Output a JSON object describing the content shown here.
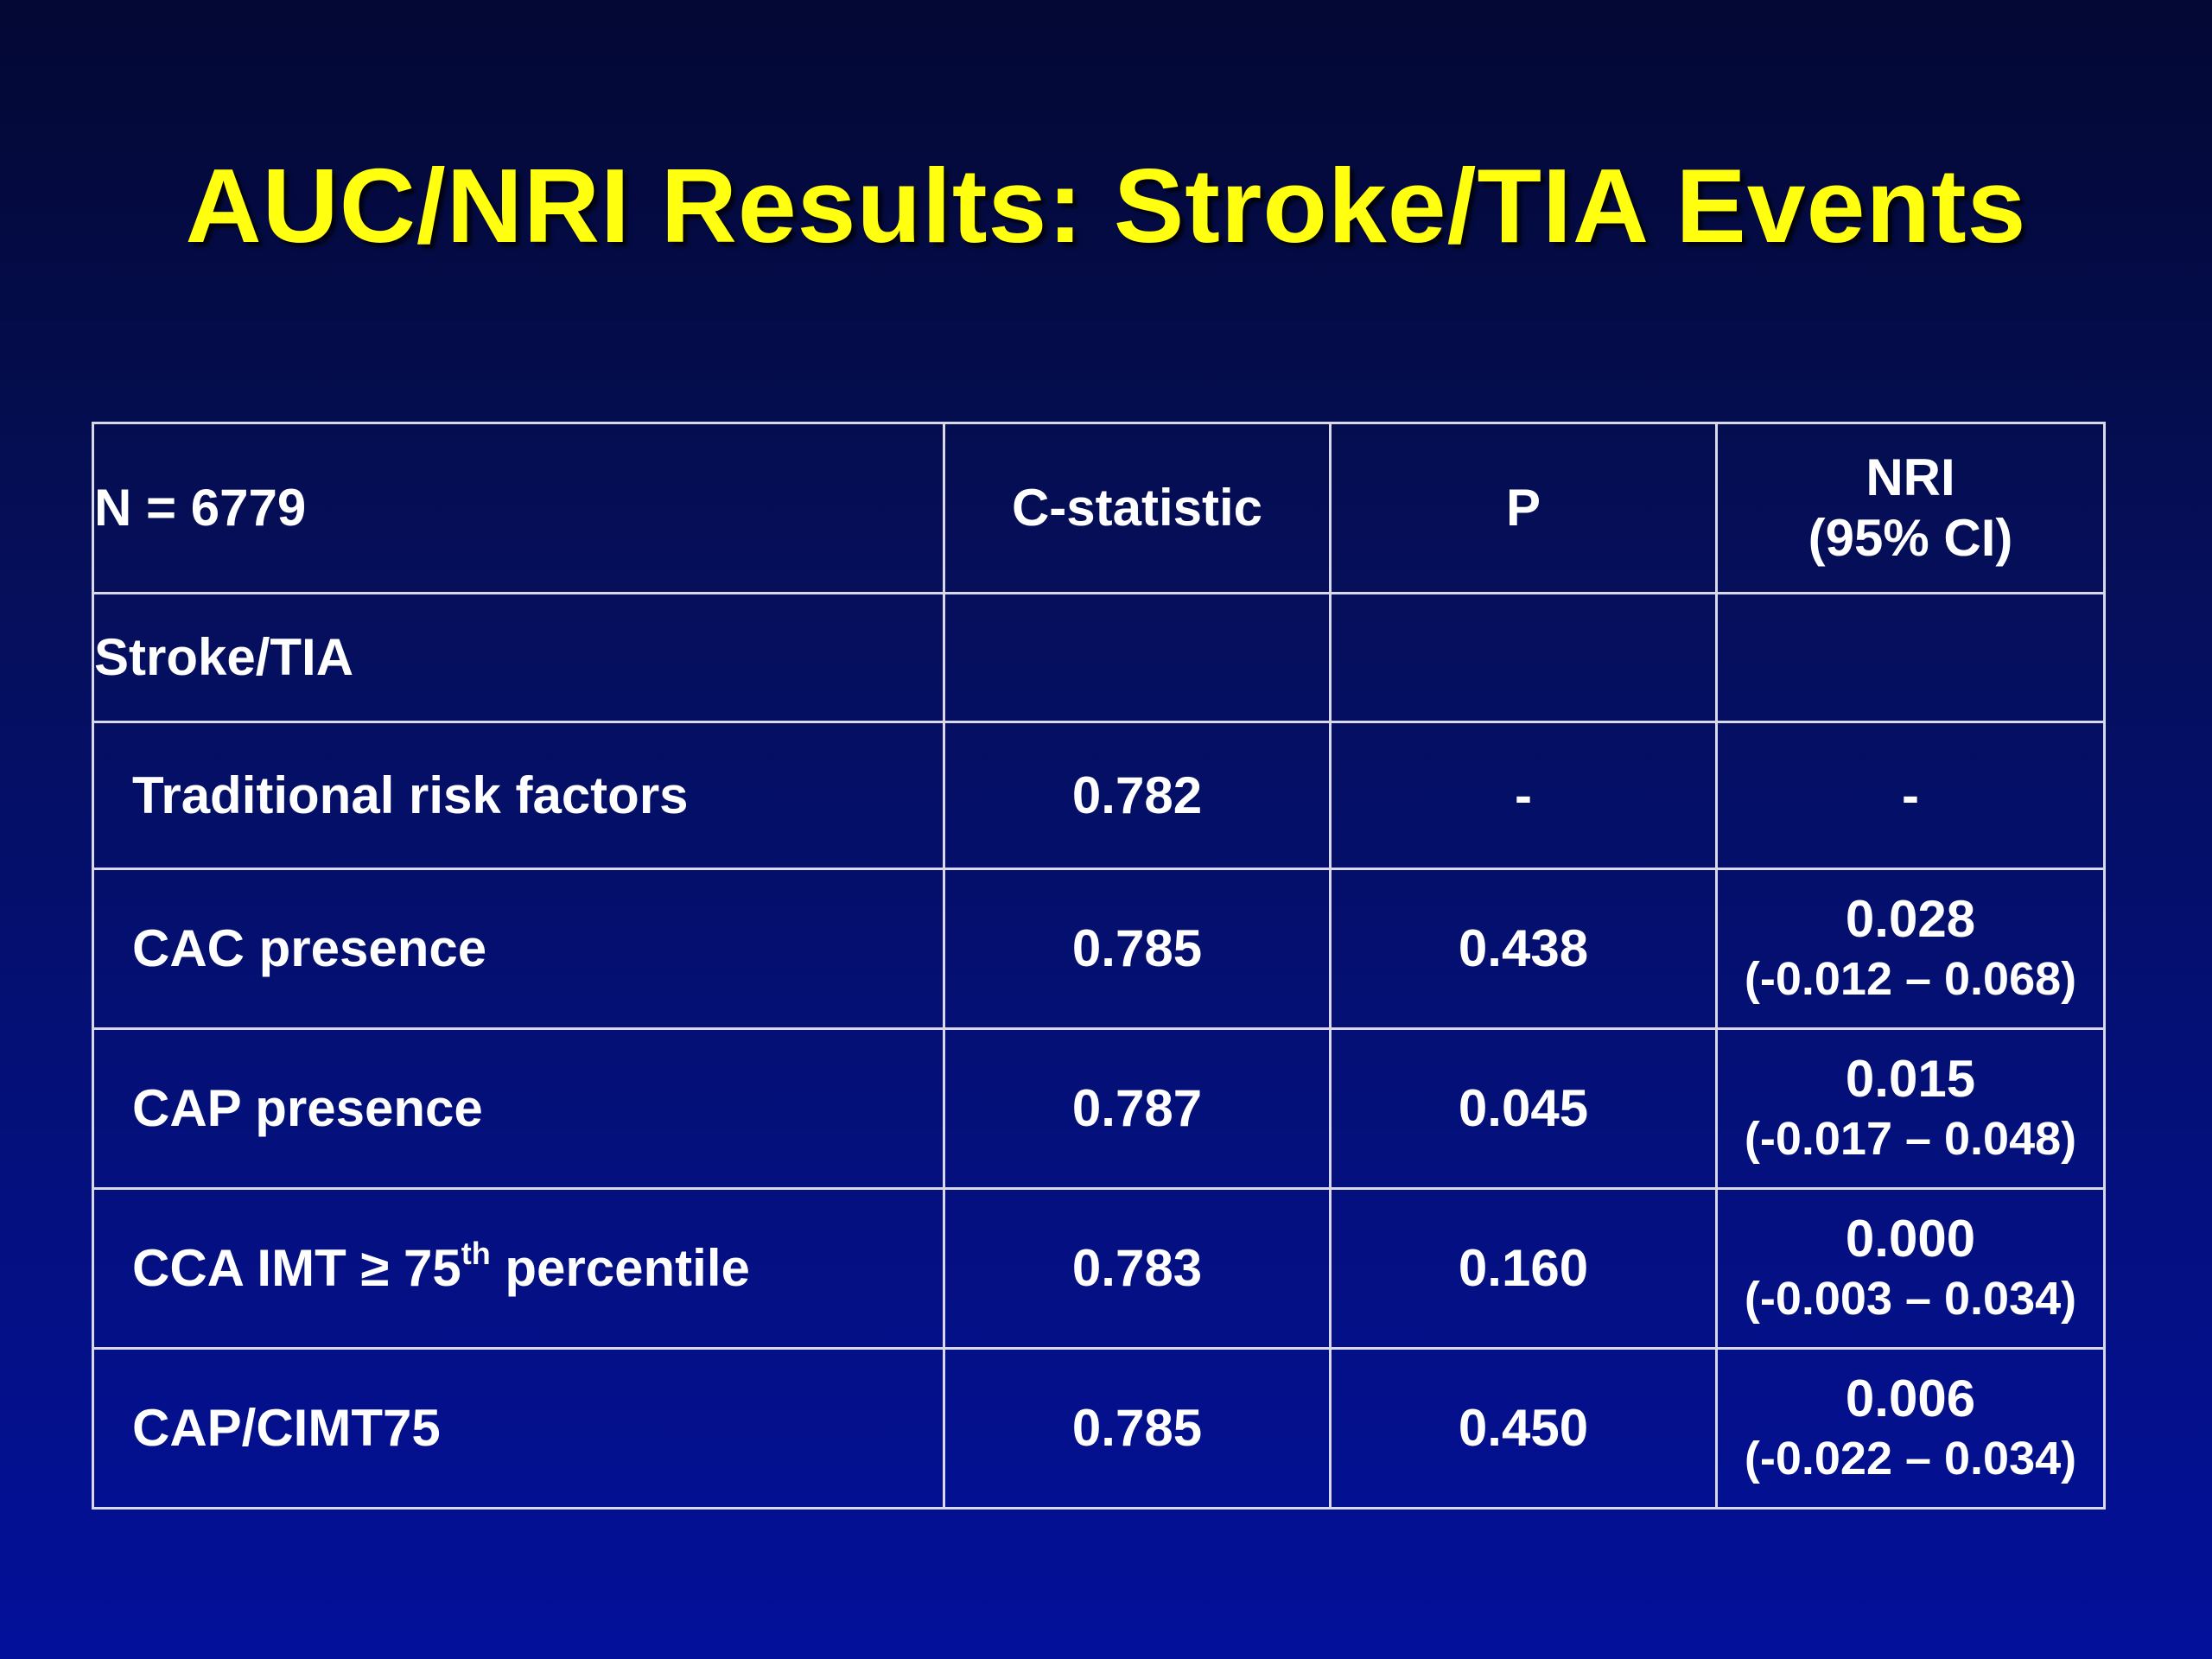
{
  "slide": {
    "title": "AUC/NRI Results: Stroke/TIA Events"
  },
  "colors": {
    "title": "#ffff0f",
    "highlight": "#ffff14",
    "background_top": "#030833",
    "background_bottom": "#03109a",
    "text": "#ffffff"
  },
  "table": {
    "header": {
      "n_label": "N = 6779",
      "c_statistic": "C-statistic",
      "p": "P",
      "nri_line1": "NRI",
      "nri_line2": "(95% CI)"
    },
    "section_label": "Stroke/TIA",
    "rows": [
      {
        "label": "Traditional risk factors",
        "c_statistic": "0.782",
        "p": "-",
        "nri": "-",
        "nri_ci": ""
      },
      {
        "label": "CAC presence",
        "c_statistic": "0.785",
        "p": "0.438",
        "nri": "0.028",
        "nri_ci": "(-0.012 – 0.068)"
      },
      {
        "label": "CAP presence",
        "c_statistic": "0.787",
        "p": "0.045",
        "nri": "0.015",
        "nri_ci": "(-0.017 – 0.048)"
      },
      {
        "label_prefix": "CCA IMT ≥ 75",
        "label_sup": "th",
        "label_suffix": " percentile",
        "c_statistic": "0.783",
        "p": "0.160",
        "nri": "0.000",
        "nri_ci": "(-0.003 – 0.034)"
      },
      {
        "label": "CAP/CIMT75",
        "c_statistic": "0.785",
        "p": "0.450",
        "nri": "0.006",
        "nri_ci": "(-0.022 – 0.034)"
      }
    ]
  }
}
